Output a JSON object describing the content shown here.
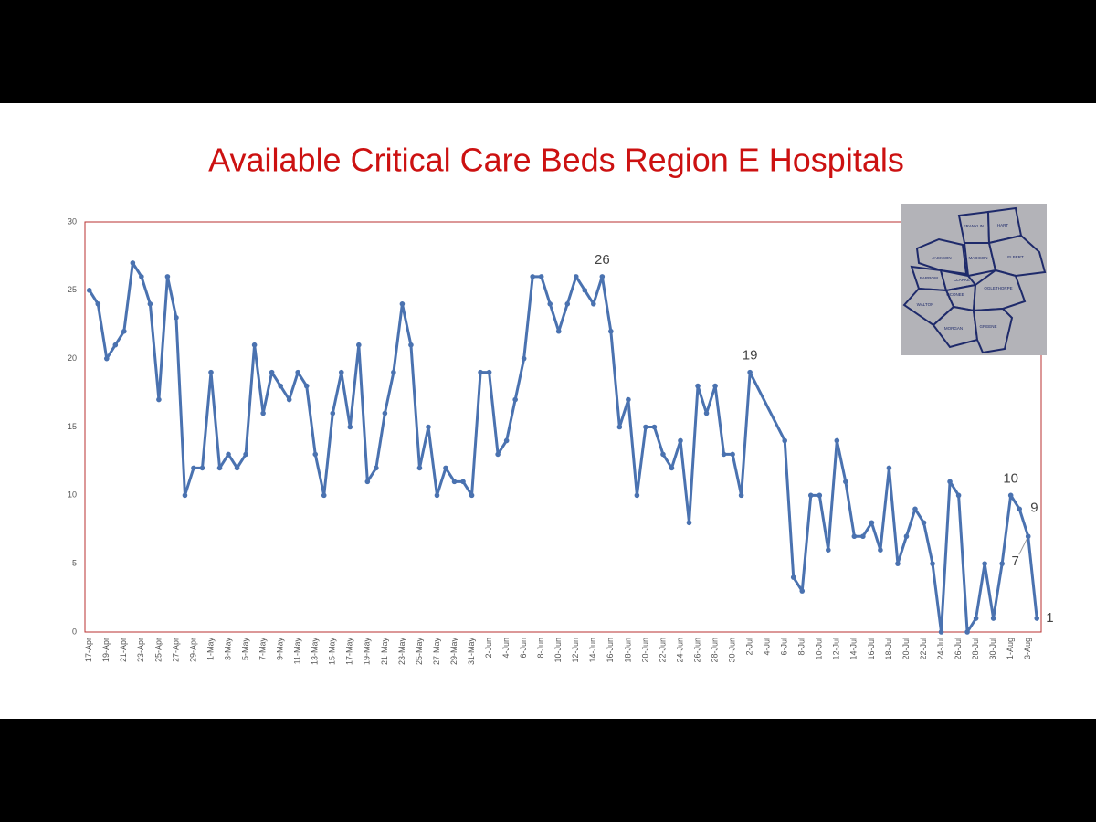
{
  "chart_data": {
    "type": "line",
    "title": "Available Critical Care Beds Region E Hospitals",
    "x": [
      "17-Apr",
      "18-Apr",
      "19-Apr",
      "20-Apr",
      "21-Apr",
      "22-Apr",
      "23-Apr",
      "24-Apr",
      "25-Apr",
      "26-Apr",
      "27-Apr",
      "28-Apr",
      "29-Apr",
      "30-Apr",
      "1-May",
      "2-May",
      "3-May",
      "4-May",
      "5-May",
      "6-May",
      "7-May",
      "8-May",
      "9-May",
      "10-May",
      "11-May",
      "12-May",
      "13-May",
      "14-May",
      "15-May",
      "16-May",
      "17-May",
      "18-May",
      "19-May",
      "20-May",
      "21-May",
      "22-May",
      "23-May",
      "24-May",
      "25-May",
      "26-May",
      "27-May",
      "28-May",
      "29-May",
      "30-May",
      "31-May",
      "1-Jun",
      "2-Jun",
      "3-Jun",
      "4-Jun",
      "5-Jun",
      "6-Jun",
      "7-Jun",
      "8-Jun",
      "9-Jun",
      "10-Jun",
      "11-Jun",
      "12-Jun",
      "13-Jun",
      "14-Jun",
      "15-Jun",
      "16-Jun",
      "17-Jun",
      "18-Jun",
      "19-Jun",
      "20-Jun",
      "21-Jun",
      "22-Jun",
      "23-Jun",
      "24-Jun",
      "25-Jun",
      "26-Jun",
      "27-Jun",
      "28-Jun",
      "29-Jun",
      "30-Jun",
      "1-Jul",
      "2-Jul",
      "6-Jul",
      "7-Jul",
      "8-Jul",
      "9-Jul",
      "10-Jul",
      "11-Jul",
      "12-Jul",
      "13-Jul",
      "14-Jul",
      "15-Jul",
      "16-Jul",
      "17-Jul",
      "18-Jul",
      "19-Jul",
      "20-Jul",
      "21-Jul",
      "22-Jul",
      "23-Jul",
      "24-Jul",
      "25-Jul",
      "26-Jul",
      "27-Jul",
      "28-Jul",
      "29-Jul",
      "30-Jul",
      "31-Jul",
      "1-Aug",
      "2-Aug",
      "3-Aug",
      "4-Aug"
    ],
    "series": [
      {
        "color": "#4a72b0",
        "values": [
          25,
          24,
          20,
          21,
          22,
          27,
          26,
          24,
          17,
          26,
          23,
          10,
          12,
          12,
          19,
          12,
          13,
          12,
          13,
          21,
          16,
          19,
          18,
          17,
          19,
          18,
          13,
          10,
          16,
          19,
          15,
          21,
          11,
          12,
          16,
          19,
          24,
          21,
          12,
          15,
          10,
          12,
          11,
          11,
          10,
          19,
          19,
          13,
          14,
          17,
          20,
          26,
          26,
          24,
          22,
          24,
          26,
          25,
          24,
          26,
          22,
          15,
          17,
          10,
          15,
          15,
          13,
          12,
          14,
          8,
          18,
          16,
          18,
          13,
          13,
          10,
          19,
          14,
          4,
          3,
          10,
          10,
          6,
          14,
          11,
          7,
          7,
          8,
          6,
          12,
          5,
          7,
          9,
          8,
          5,
          0,
          11,
          10,
          0,
          1,
          5,
          1,
          5,
          10,
          9,
          7,
          1
        ]
      }
    ],
    "labeled_points": [
      "15-Jun",
      "2-Jul",
      "1-Aug",
      "2-Aug",
      "3-Aug",
      "4-Aug"
    ],
    "xticks": [
      "17-Apr",
      "19-Apr",
      "21-Apr",
      "23-Apr",
      "25-Apr",
      "27-Apr",
      "29-Apr",
      "1-May",
      "3-May",
      "5-May",
      "7-May",
      "9-May",
      "11-May",
      "13-May",
      "15-May",
      "17-May",
      "19-May",
      "21-May",
      "23-May",
      "25-May",
      "27-May",
      "29-May",
      "31-May",
      "2-Jun",
      "4-Jun",
      "6-Jun",
      "8-Jun",
      "10-Jun",
      "12-Jun",
      "14-Jun",
      "16-Jun",
      "18-Jun",
      "20-Jun",
      "22-Jun",
      "24-Jun",
      "26-Jun",
      "28-Jun",
      "30-Jun",
      "2-Jul",
      "4-Jul",
      "6-Jul",
      "8-Jul",
      "10-Jul",
      "12-Jul",
      "14-Jul",
      "16-Jul",
      "18-Jul",
      "20-Jul",
      "22-Jul",
      "24-Jul",
      "26-Jul",
      "28-Jul",
      "30-Jul",
      "1-Aug",
      "3-Aug"
    ],
    "ylim": [
      0,
      30
    ],
    "yticks": [
      0,
      5,
      10,
      15,
      20,
      25,
      30
    ],
    "grid": false,
    "inset_map_labels": [
      "FRANKLIN",
      "HART",
      "JACKSON",
      "MADISON",
      "ELBERT",
      "BARROW",
      "CLARKE",
      "OCONEE",
      "OGLETHORPE",
      "WALTON",
      "MORGAN",
      "GREENE"
    ]
  }
}
